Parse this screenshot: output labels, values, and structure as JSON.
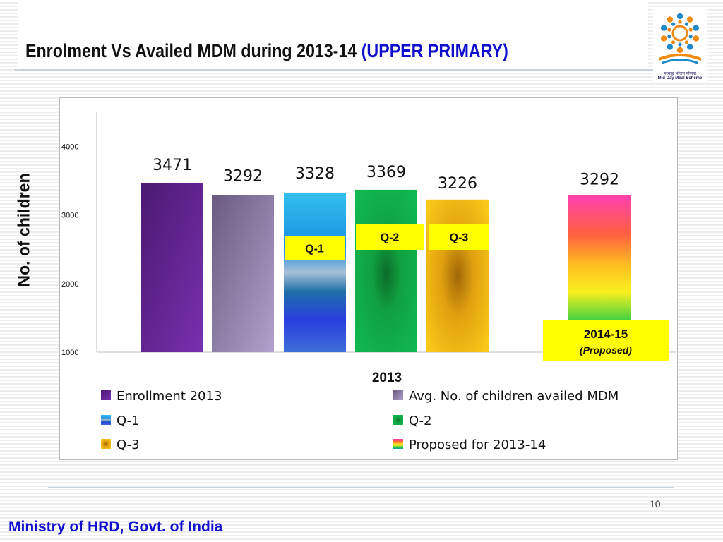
{
  "slide": {
    "title_main": "Enrolment Vs Availed MDM during  2013-14 ",
    "title_accent": "(UPPER PRIMARY)",
    "page_number": "10",
    "footer": "Ministry of HRD, Govt. of India",
    "logo": {
      "icon": "mid-day-meal-logo-icon",
      "caption_hindi": "मध्याह्न भोजन योजना",
      "caption_english": "Mid Day Meal Scheme"
    }
  },
  "chart_data": {
    "type": "bar",
    "title": "",
    "xlabel": "2013",
    "ylabel": "No. of children",
    "ylim": [
      1000,
      4500
    ],
    "yticks": [
      1000,
      2000,
      3000,
      4000
    ],
    "grid": false,
    "legend_position": "bottom",
    "series": [
      {
        "name": "Enrollment 2013",
        "value": 3471,
        "label": "3471",
        "color": "#5a2590"
      },
      {
        "name": "Avg. No. of children availed MDM",
        "value": 3292,
        "label": "3292",
        "color": "#9a8ab8"
      },
      {
        "name": "Q-1",
        "value": 3328,
        "label": "3328",
        "color": "#2aa8e8",
        "tag": "Q-1"
      },
      {
        "name": "Q-2",
        "value": 3369,
        "label": "3369",
        "color": "#10a848",
        "tag": "Q-2"
      },
      {
        "name": "Q-3",
        "value": 3226,
        "label": "3226",
        "color": "#f0b810",
        "tag": "Q-3"
      },
      {
        "name": "Proposed for 2013-14",
        "value": 3292,
        "label": "3292",
        "color": "#ff4fa0",
        "tag_line1": "2014-15",
        "tag_line2": "(Proposed)"
      }
    ],
    "tag_color": "#ffff00"
  }
}
